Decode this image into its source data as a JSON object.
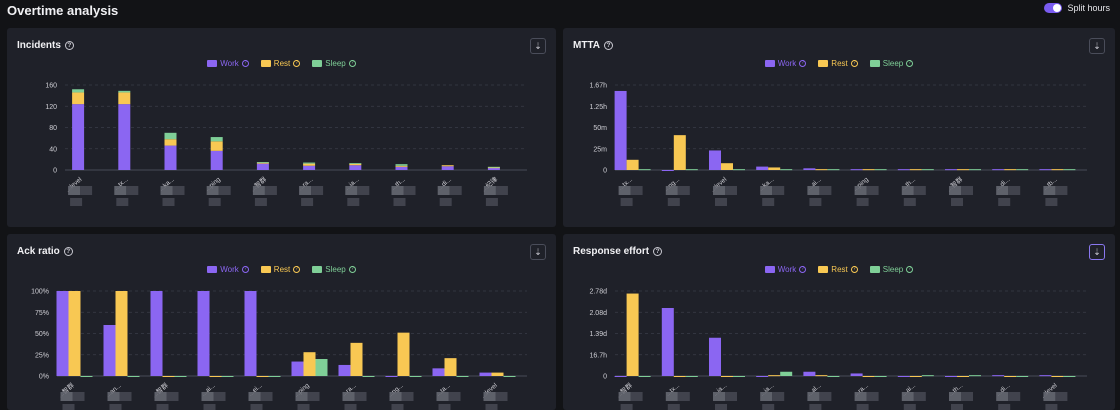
{
  "page_title": "Overtime analysis",
  "split_hours_label": "Split hours",
  "split_hours_on": true,
  "colors": {
    "work": "#8b66f2",
    "rest": "#f8c853",
    "sleep": "#7fcf97",
    "panel": "#1f2129",
    "accent": "#7a5cf0"
  },
  "icons": {
    "help": "help-circle-icon",
    "sort": "sort-icon",
    "toggle": "toggle-switch-icon"
  },
  "legend": {
    "work": "Work",
    "rest": "Rest",
    "sleep": "Sleep"
  },
  "panels": [
    {
      "title": "Incidents",
      "chart_data": {
        "type": "bar",
        "stacked": true,
        "yticks": [
          "0",
          "40",
          "80",
          "120",
          "160"
        ],
        "ylim": [
          0,
          160
        ],
        "categories": [
          "...level",
          "...tx...",
          "...ka...",
          "...ping",
          "...智群",
          "...ra...",
          "...ia...",
          "...th...",
          "...di...",
          "...纪律"
        ],
        "series": [
          {
            "name": "Work",
            "values": [
              124,
              124,
              46,
              36,
              12,
              8,
              9,
              6,
              7,
              4
            ]
          },
          {
            "name": "Rest",
            "values": [
              22,
              22,
              12,
              18,
              2,
              4,
              3,
              2,
              2,
              1
            ]
          },
          {
            "name": "Sleep",
            "values": [
              6,
              3,
              12,
              8,
              1,
              2,
              1,
              3,
              0,
              1
            ]
          }
        ],
        "grid": true,
        "legend_position": "top-center"
      }
    },
    {
      "title": "MTTA",
      "chart_data": {
        "type": "bar",
        "stacked": false,
        "yticks": [
          "0",
          "25m",
          "50m",
          "1.25h",
          "1.67h"
        ],
        "ylim": [
          0,
          100
        ],
        "categories": [
          "...tx...",
          "...ng...",
          "...level",
          "...ka...",
          "...ai...",
          "...ping",
          "...th...",
          "...智群",
          "...di...",
          "...tb..."
        ],
        "series": [
          {
            "name": "Work",
            "values": [
              93,
              0,
              23,
              4,
              2,
              1,
              1,
              1,
              1,
              1
            ]
          },
          {
            "name": "Rest",
            "values": [
              12,
              41,
              8,
              3,
              1,
              1,
              1,
              1,
              1,
              1
            ]
          },
          {
            "name": "Sleep",
            "values": [
              1,
              1,
              1,
              1,
              1,
              1,
              1,
              1,
              1,
              1
            ]
          }
        ],
        "grid": true,
        "legend_position": "top-center"
      }
    },
    {
      "title": "Ack ratio",
      "chart_data": {
        "type": "bar",
        "stacked": false,
        "yticks": [
          "0%",
          "25%",
          "50%",
          "75%",
          "100%"
        ],
        "ylim": [
          0,
          100
        ],
        "categories": [
          "...智群",
          "...an...",
          "...智群",
          "...ai...",
          "...ei...",
          "...ping",
          "...ra...",
          "...ng...",
          "...ta...",
          "...level"
        ],
        "series": [
          {
            "name": "Work",
            "values": [
              100,
              60,
              100,
              100,
              100,
              17,
              13,
              0,
              9,
              4
            ]
          },
          {
            "name": "Rest",
            "values": [
              100,
              100,
              0,
              0,
              0,
              28,
              39,
              51,
              21,
              4
            ]
          },
          {
            "name": "Sleep",
            "values": [
              0,
              0,
              0,
              0,
              0,
              20,
              0,
              0,
              0,
              0
            ]
          }
        ],
        "grid": true,
        "legend_position": "top-center"
      }
    },
    {
      "title": "Response effort",
      "chart_data": {
        "type": "bar",
        "stacked": false,
        "yticks": [
          "0",
          "16.7h",
          "1.39d",
          "2.08d",
          "2.78d"
        ],
        "ylim": [
          0,
          100
        ],
        "categories": [
          "...智群",
          "...tx...",
          "...ia...",
          "...ia...",
          "...al...",
          "...ra...",
          "...ai...",
          "...th...",
          "...di...",
          "...level"
        ],
        "series": [
          {
            "name": "Work",
            "values": [
              0,
              80,
              45,
              0,
              5,
              3,
              0,
              0,
              1,
              1
            ]
          },
          {
            "name": "Rest",
            "values": [
              97,
              0,
              0,
              1,
              1,
              0,
              0,
              0,
              0,
              0
            ]
          },
          {
            "name": "Sleep",
            "values": [
              0,
              0,
              0,
              5,
              0,
              0,
              1,
              1,
              0,
              0
            ]
          }
        ],
        "grid": true,
        "legend_position": "top-center"
      }
    }
  ]
}
